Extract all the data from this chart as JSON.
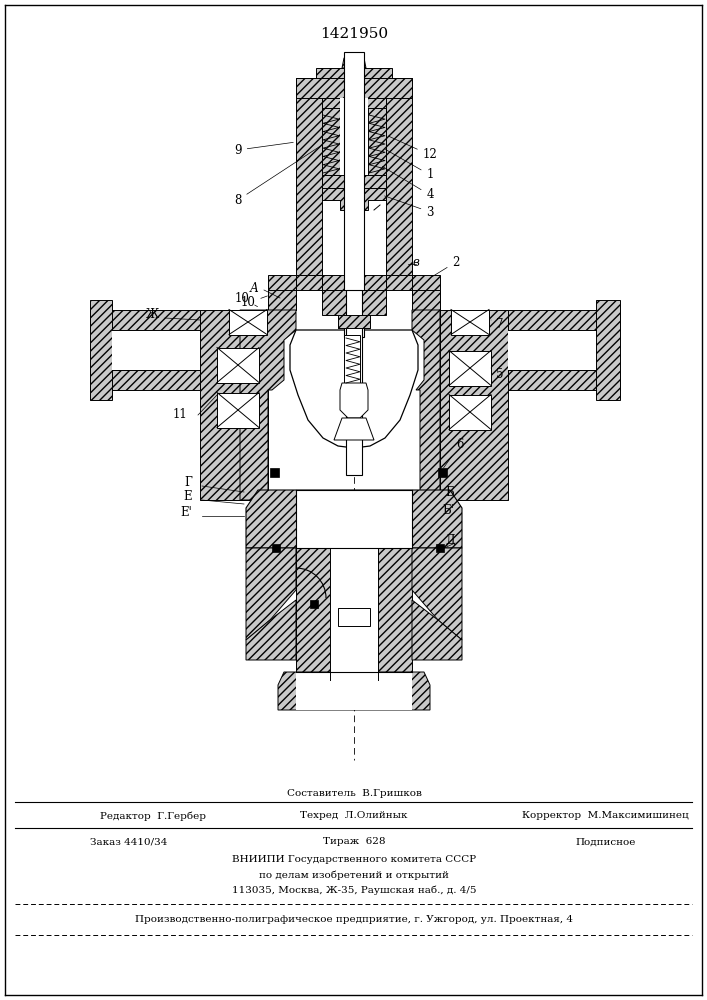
{
  "title": "1421950",
  "lc": "#000000",
  "hc": "#c8c8c8",
  "footer": {
    "compose": "Составитель  В.Гришков",
    "editor": "Редактор  Г.Гербер",
    "techred": "Техред  Л.Олийнык",
    "corrector": "Корректор  М.Максимишинец",
    "order": "Заказ 4410/34",
    "tirazh": "Тираж  628",
    "podpisnoe": "Подписное",
    "vni1": "ВНИИПИ Государственного комитета СССР",
    "vni2": "по делам изобретений и открытий",
    "vni3": "113035, Москва, Ж-35, Раушская наб., д. 4/5",
    "bottom": "Производственно-полиграфическое предприятие, г. Ужгород, ул. Проектная, 4"
  }
}
